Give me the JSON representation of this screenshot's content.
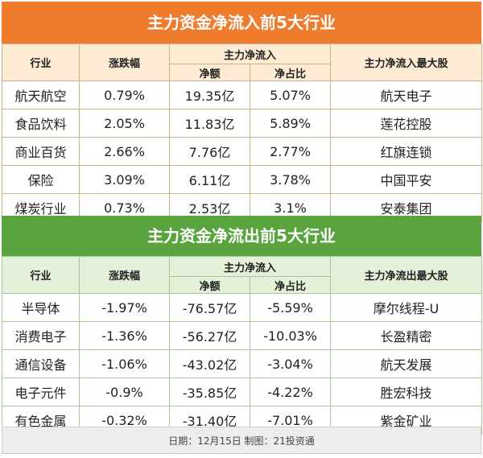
{
  "inflow": {
    "title": "主力资金净流入前5大行业",
    "headers": {
      "industry": "行业",
      "change": "涨跌幅",
      "group": "主力净流入",
      "amount": "净额",
      "ratio": "净占比",
      "top_stock": "主力净流入最大股"
    },
    "rows": [
      {
        "industry": "航天航空",
        "change": "0.79%",
        "amount": "19.35亿",
        "ratio": "5.07%",
        "stock": "航天电子"
      },
      {
        "industry": "食品饮料",
        "change": "2.05%",
        "amount": "11.83亿",
        "ratio": "5.89%",
        "stock": "莲花控股"
      },
      {
        "industry": "商业百货",
        "change": "2.66%",
        "amount": "7.76亿",
        "ratio": "2.77%",
        "stock": "红旗连锁"
      },
      {
        "industry": "保险",
        "change": "3.09%",
        "amount": "6.11亿",
        "ratio": "3.78%",
        "stock": "中国平安"
      },
      {
        "industry": "煤炭行业",
        "change": "0.73%",
        "amount": "2.53亿",
        "ratio": "3.1%",
        "stock": "安泰集团"
      }
    ]
  },
  "outflow": {
    "title": "主力资金净流出前5大行业",
    "headers": {
      "industry": "行业",
      "change": "涨跌幅",
      "group": "主力净流入",
      "amount": "净额",
      "ratio": "净占比",
      "top_stock": "主力净流出最大股"
    },
    "rows": [
      {
        "industry": "半导体",
        "change": "-1.97%",
        "amount": "-76.57亿",
        "ratio": "-5.59%",
        "stock": "摩尔线程-U"
      },
      {
        "industry": "消费电子",
        "change": "-1.36%",
        "amount": "-56.27亿",
        "ratio": "-10.03%",
        "stock": "长盈精密"
      },
      {
        "industry": "通信设备",
        "change": "-1.06%",
        "amount": "-43.02亿",
        "ratio": "-3.04%",
        "stock": "航天发展"
      },
      {
        "industry": "电子元件",
        "change": "-0.9%",
        "amount": "-35.85亿",
        "ratio": "-4.22%",
        "stock": "胜宏科技"
      },
      {
        "industry": "有色金属",
        "change": "-0.32%",
        "amount": "-31.40亿",
        "ratio": "-7.01%",
        "stock": "紫金矿业"
      }
    ]
  },
  "footer": "日期：12月15日 制图：21投资通",
  "colors": {
    "inflow_accent": "#ef7b2d",
    "outflow_accent": "#5aa43f"
  }
}
